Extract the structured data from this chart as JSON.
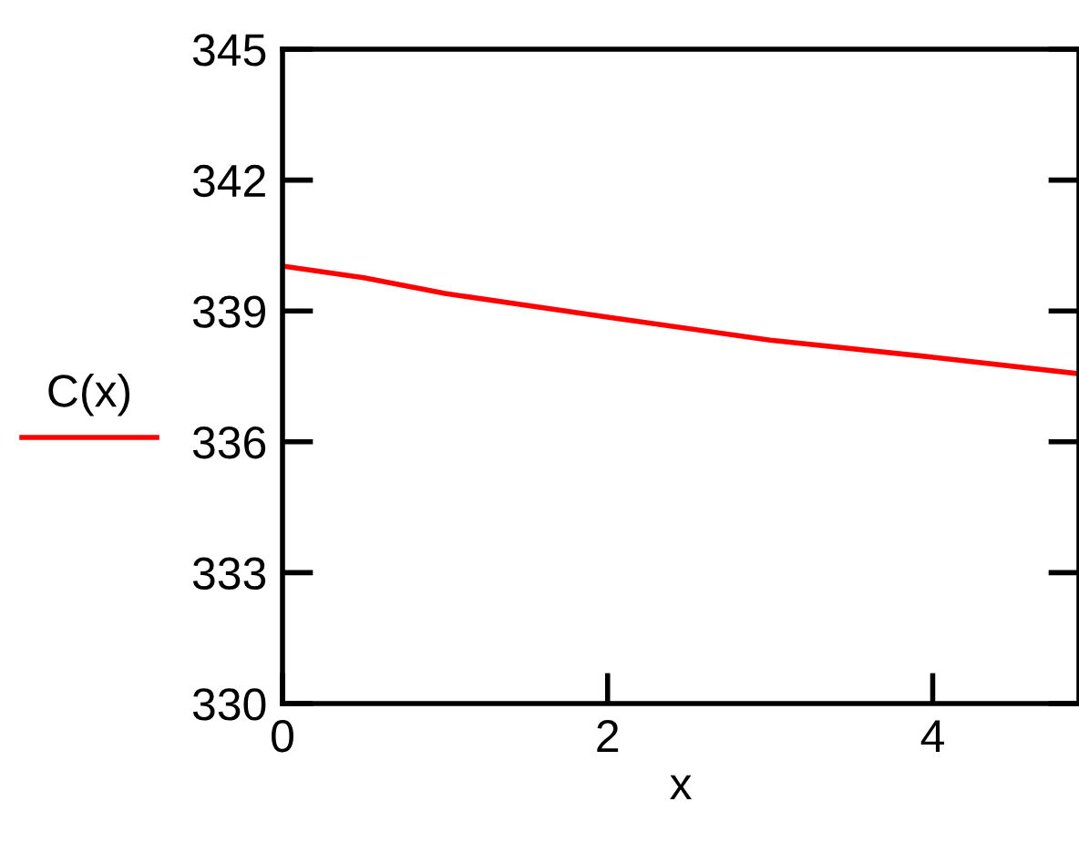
{
  "chart_data": {
    "type": "line",
    "xlabel": "x",
    "x": [
      0,
      0.5,
      1,
      2,
      3,
      4,
      4.9
    ],
    "series": [
      {
        "name": "C(x)",
        "color": "#ff0000",
        "values": [
          340.03,
          339.76,
          339.4,
          338.86,
          338.33,
          337.94,
          337.56
        ]
      }
    ],
    "xlim": [
      0,
      4.9
    ],
    "xticks": [
      0,
      2,
      4
    ],
    "ylim": [
      330,
      345
    ],
    "yticks": [
      330,
      333,
      336,
      339,
      342,
      345
    ],
    "grid": false,
    "legend": "left"
  }
}
